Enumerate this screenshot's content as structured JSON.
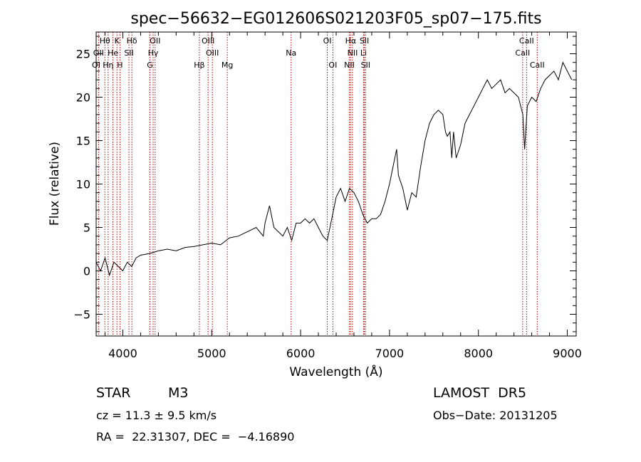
{
  "chart_data": {
    "type": "line",
    "title": "spec−56632−EG012606S021203F05_sp07−175.fits",
    "xlabel": "Wavelength (Å)",
    "ylabel": "Flux (relative)",
    "xlim": [
      3700,
      9100
    ],
    "ylim": [
      -7.5,
      27.5
    ],
    "x_ticks": [
      4000,
      5000,
      6000,
      7000,
      8000,
      9000
    ],
    "x_tick_labels": [
      "4000",
      "5000",
      "6000",
      "7000",
      "8000",
      "9000"
    ],
    "y_ticks": [
      -5,
      0,
      5,
      10,
      15,
      20,
      25
    ],
    "y_tick_labels": [
      "−5",
      "0",
      "5",
      "10",
      "15",
      "20",
      "25"
    ],
    "grid": false,
    "line_color": "#000000",
    "marker_line_color": "#b00000",
    "series": [
      {
        "x": [
          3700,
          3750,
          3800,
          3850,
          3900,
          3950,
          4000,
          4050,
          4100,
          4150,
          4200,
          4300,
          4400,
          4500,
          4600,
          4700,
          4800,
          4900,
          5000,
          5100,
          5200,
          5300,
          5400,
          5500,
          5580,
          5600,
          5650,
          5700,
          5750,
          5800,
          5850,
          5900,
          5950,
          6000,
          6050,
          6100,
          6150,
          6200,
          6250,
          6300,
          6350,
          6400,
          6450,
          6500,
          6550,
          6600,
          6650,
          6700,
          6750,
          6800,
          6850,
          6900,
          6950,
          7000,
          7050,
          7080,
          7100,
          7150,
          7200,
          7250,
          7300,
          7350,
          7400,
          7450,
          7500,
          7550,
          7600,
          7630,
          7650,
          7680,
          7700,
          7720,
          7750,
          7800,
          7850,
          7900,
          7950,
          8000,
          8050,
          8100,
          8150,
          8200,
          8250,
          8300,
          8350,
          8400,
          8450,
          8500,
          8520,
          8550,
          8600,
          8650,
          8700,
          8750,
          8800,
          8850,
          8900,
          8950,
          9000,
          9050
        ],
        "y": [
          1.0,
          0.0,
          1.5,
          -0.5,
          1.0,
          0.5,
          0.0,
          1.0,
          0.5,
          1.5,
          1.8,
          2.0,
          2.3,
          2.5,
          2.3,
          2.7,
          2.8,
          3.0,
          3.2,
          3.0,
          3.8,
          4.0,
          4.5,
          5.0,
          4.0,
          5.5,
          7.5,
          5.0,
          4.5,
          4.0,
          5.0,
          3.5,
          5.5,
          5.5,
          6.0,
          5.5,
          6.0,
          5.0,
          4.0,
          3.5,
          6.0,
          8.5,
          9.5,
          8.0,
          9.5,
          9.0,
          8.0,
          6.5,
          5.5,
          6.0,
          6.0,
          6.5,
          8.0,
          10.0,
          12.5,
          14.0,
          11.0,
          9.5,
          7.0,
          9.0,
          8.5,
          12.0,
          15.0,
          17.0,
          18.0,
          18.5,
          18.0,
          16.0,
          15.5,
          16.0,
          13.0,
          16.0,
          13.0,
          14.5,
          17.0,
          18.0,
          19.0,
          20.0,
          21.0,
          22.0,
          21.0,
          21.5,
          22.0,
          20.5,
          21.0,
          20.5,
          20.0,
          18.0,
          14.0,
          19.0,
          20.0,
          19.5,
          21.0,
          22.0,
          22.5,
          23.0,
          22.0,
          24.0,
          23.0,
          22.0
        ]
      }
    ],
    "line_markers": [
      {
        "label": "Hθ",
        "x": 3798,
        "row": 0
      },
      {
        "label": "K",
        "x": 3934,
        "row": 0
      },
      {
        "label": "Hδ",
        "x": 4102,
        "row": 0
      },
      {
        "label": "OII",
        "x": 4363,
        "row": 0
      },
      {
        "label": "OIII",
        "x": 4959,
        "row": 0
      },
      {
        "label": "OI",
        "x": 6300,
        "row": 0
      },
      {
        "label": "Hα",
        "x": 6563,
        "row": 0
      },
      {
        "label": "SII",
        "x": 6717,
        "row": 0
      },
      {
        "label": "CaII",
        "x": 8542,
        "row": 0
      },
      {
        "label": "OII",
        "x": 3727,
        "row": 1
      },
      {
        "label": "He",
        "x": 3889,
        "row": 1
      },
      {
        "label": "SII",
        "x": 4069,
        "row": 1
      },
      {
        "label": "Hγ",
        "x": 4341,
        "row": 1
      },
      {
        "label": "OIII",
        "x": 5007,
        "row": 1
      },
      {
        "label": "Na",
        "x": 5893,
        "row": 1
      },
      {
        "label": "NII",
        "x": 6584,
        "row": 1
      },
      {
        "label": "Li",
        "x": 6708,
        "row": 1
      },
      {
        "label": "CaII",
        "x": 8498,
        "row": 1
      },
      {
        "label": "OI",
        "x": 3700,
        "row": 2
      },
      {
        "label": "Hη",
        "x": 3835,
        "row": 2
      },
      {
        "label": "H",
        "x": 3968,
        "row": 2
      },
      {
        "label": "G",
        "x": 4305,
        "row": 2
      },
      {
        "label": "Hβ",
        "x": 4861,
        "row": 2
      },
      {
        "label": "Mg",
        "x": 5175,
        "row": 2
      },
      {
        "label": "OI",
        "x": 6363,
        "row": 2
      },
      {
        "label": "NII",
        "x": 6548,
        "row": 2
      },
      {
        "label": "SII",
        "x": 6731,
        "row": 2
      },
      {
        "label": "CaII",
        "x": 8662,
        "row": 2
      }
    ]
  },
  "info": {
    "object_type": "STAR",
    "subclass": "M3",
    "cz": "cz = 11.3 ± 9.5 km/s",
    "coords": "RA =  22.31307, DEC =  −4.16890",
    "survey": "LAMOST  DR5",
    "obs_date": "Obs−Date: 20131205"
  }
}
